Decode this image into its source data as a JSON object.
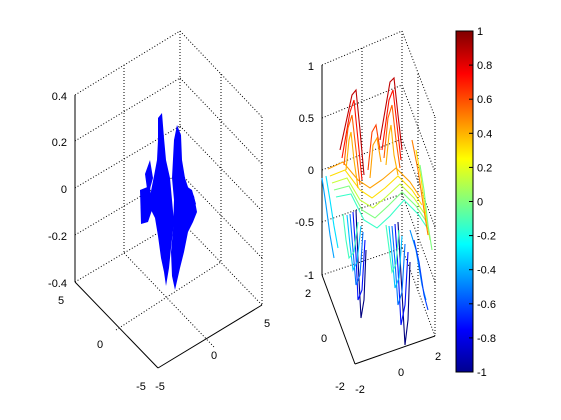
{
  "chart_data": [
    {
      "type": "surface-3d",
      "render": "solid-blue-mesh",
      "color": "#0000ff",
      "zlim": [
        -0.4,
        0.4
      ],
      "xlim": [
        -5,
        5
      ],
      "ylim": [
        -5,
        5
      ],
      "z_ticks": [
        "0.4",
        "0.2",
        "0",
        "-0.2",
        "-0.4"
      ],
      "x_ticks": [
        "-5",
        "0",
        "5"
      ],
      "y_ticks": [
        "5",
        "0",
        "-5"
      ],
      "grid": true
    },
    {
      "type": "surface-3d",
      "render": "colored-mesh",
      "colormap": "jet",
      "zlim": [
        -1,
        1
      ],
      "xlim": [
        -2,
        2
      ],
      "ylim": [
        -2,
        2
      ],
      "z_ticks": [
        "1",
        "0.5",
        "0",
        "-0.5",
        "-1"
      ],
      "x_ticks": [
        "-2",
        "0",
        "2"
      ],
      "y_ticks": [
        "2",
        "0",
        "-2"
      ],
      "grid": true
    }
  ],
  "colorbar": {
    "colormap": "jet",
    "range": [
      -1,
      1
    ],
    "ticks": [
      "1",
      "0.8",
      "0.6",
      "0.4",
      "0.2",
      "0",
      "-0.2",
      "-0.4",
      "-0.6",
      "-0.8",
      "-1"
    ]
  }
}
